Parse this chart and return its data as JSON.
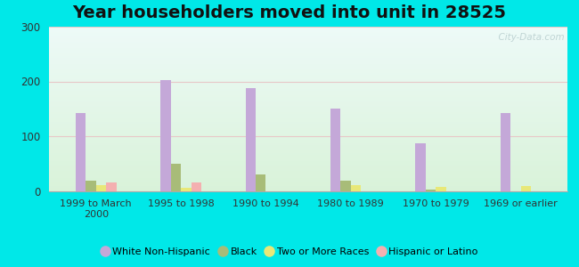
{
  "title": "Year householders moved into unit in 28525",
  "categories": [
    "1999 to March\n2000",
    "1995 to 1998",
    "1990 to 1994",
    "1980 to 1989",
    "1970 to 1979",
    "1969 or earlier"
  ],
  "series": {
    "White Non-Hispanic": [
      143,
      203,
      187,
      151,
      87,
      143
    ],
    "Black": [
      18,
      50,
      30,
      18,
      3,
      0
    ],
    "Two or More Races": [
      10,
      5,
      0,
      10,
      7,
      9
    ],
    "Hispanic or Latino": [
      15,
      15,
      0,
      0,
      0,
      0
    ]
  },
  "colors": {
    "White Non-Hispanic": "#c4a8d8",
    "Black": "#a8bc78",
    "Two or More Races": "#e8e878",
    "Hispanic or Latino": "#f4b0b0"
  },
  "ylim": [
    0,
    300
  ],
  "yticks": [
    0,
    100,
    200,
    300
  ],
  "bar_width": 0.12,
  "outer_bg": "#00e8e8",
  "watermark": "  City-Data.com",
  "title_fontsize": 14
}
